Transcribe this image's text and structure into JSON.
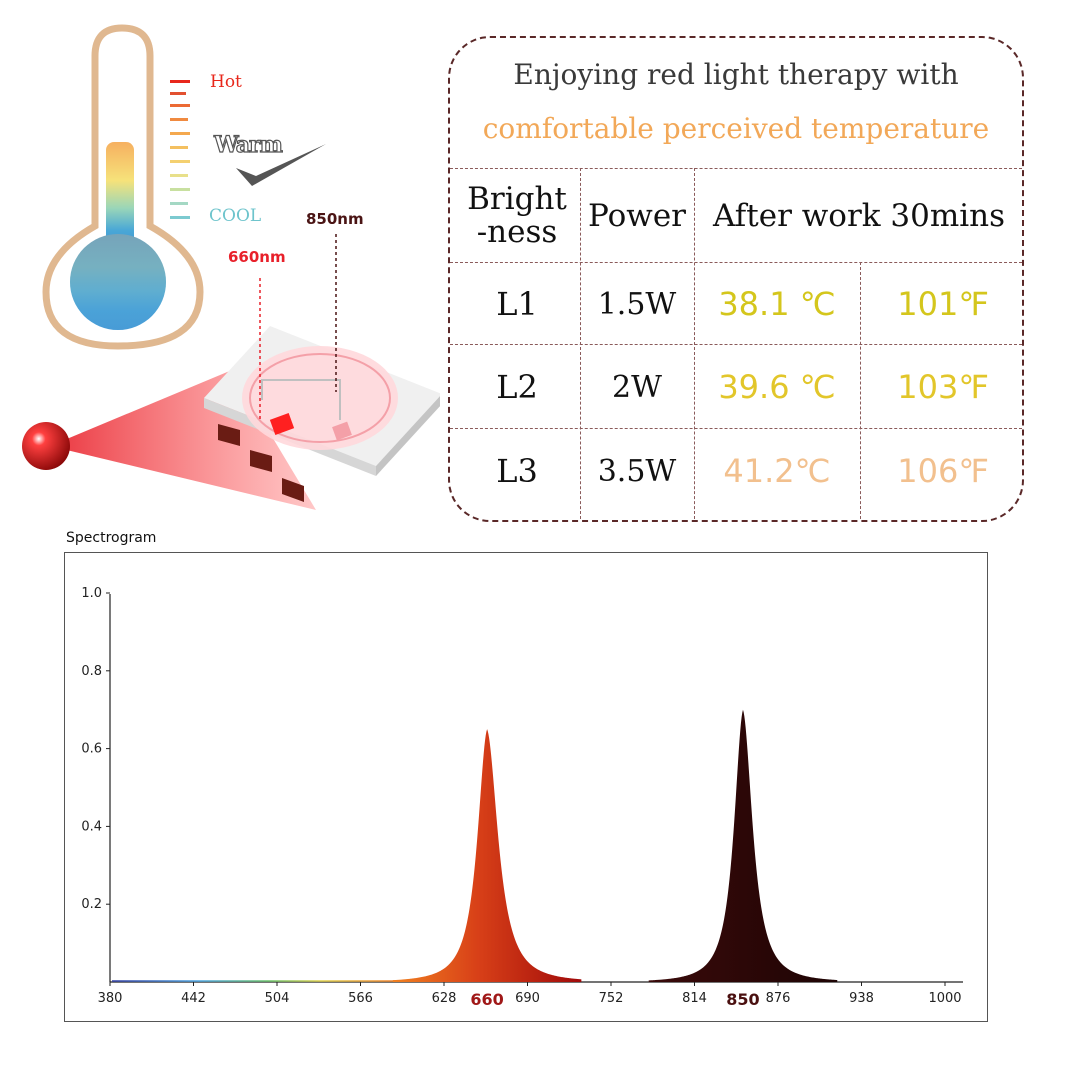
{
  "illustration": {
    "scale_labels": {
      "hot": "Hot",
      "warm": "Warm",
      "cool": "COOL"
    },
    "wavelength_labels": {
      "red": "660nm",
      "infrared": "850nm"
    },
    "colors": {
      "hot": "#e8281c",
      "cool": "#6ec4cc",
      "red_light": "#e8202a",
      "infrared": "#4a1414"
    }
  },
  "table": {
    "title_line_1": "Enjoying red light therapy with",
    "title_line_2": "comfortable perceived temperature",
    "headers": {
      "brightness_1": "Bright",
      "brightness_2": "-ness",
      "power": "Power",
      "after": "After work 30mins"
    },
    "rows": [
      {
        "level": "L1",
        "power": "1.5W",
        "celsius": "38.1 ℃",
        "fahrenheit": "101℉",
        "color": "#d4c61c"
      },
      {
        "level": "L2",
        "power": "2W",
        "celsius": "39.6 ℃",
        "fahrenheit": "103℉",
        "color": "#e2c62a"
      },
      {
        "level": "L3",
        "power": "3.5W",
        "celsius": "41.2℃",
        "fahrenheit": "106℉",
        "color": "#f2c08e"
      }
    ],
    "border_color": "#5a2828"
  },
  "chart_data": {
    "type": "area",
    "title": "Spectrogram",
    "xlabel": "",
    "ylabel": "",
    "xlim": [
      380,
      1000
    ],
    "ylim": [
      0,
      1.0
    ],
    "x_ticks": [
      380,
      442,
      504,
      566,
      628,
      690,
      752,
      814,
      876,
      938,
      1000
    ],
    "y_ticks": [
      "0.2",
      "0.4",
      "0.6",
      "0.8",
      "1.0"
    ],
    "peak_labels": [
      "660",
      "850"
    ],
    "series": [
      {
        "peak_nm": 660,
        "peak_value": 0.65,
        "color_start": "#f08020",
        "color_end": "#b01010"
      },
      {
        "peak_nm": 850,
        "peak_value": 0.7,
        "color_start": "#3a0a0a",
        "color_end": "#1e0404"
      }
    ],
    "grid": false,
    "legend": "none"
  }
}
